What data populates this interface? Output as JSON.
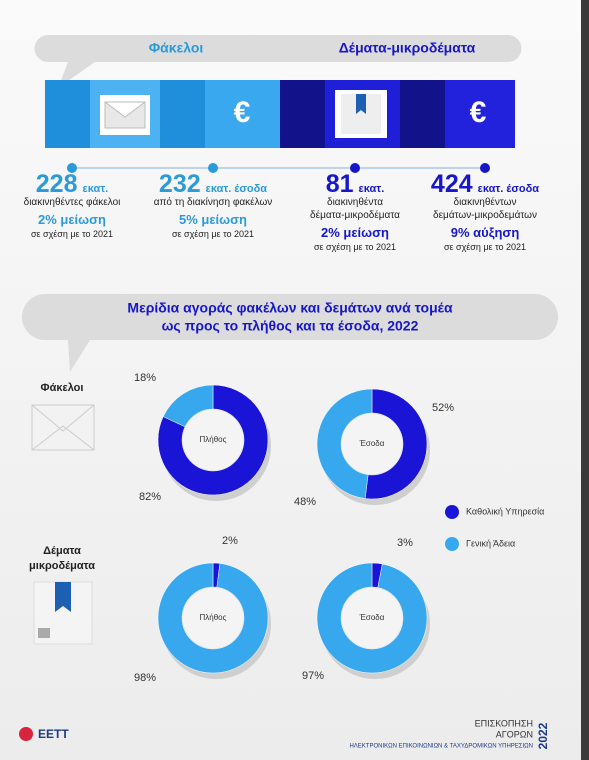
{
  "header": {
    "left": "Φάκελοι",
    "right": "Δέματα-μικροδέματα"
  },
  "stats": [
    {
      "number": "228",
      "unit": "εκατ.",
      "desc": [
        "διακινηθέντες φάκελοι"
      ],
      "change": "2% μείωση",
      "note": "σε σχέση με το 2021",
      "color": "#2a9ad8"
    },
    {
      "number": "232",
      "unit": "εκατ. έσοδα",
      "desc": [
        "από τη διακίνηση φακέλων"
      ],
      "change": "5% μείωση",
      "note": "σε σχέση με το 2021",
      "color": "#2a9ad8"
    },
    {
      "number": "81",
      "unit": "εκατ.",
      "desc": [
        "διακινηθέντα",
        "δέματα-μικροδέματα"
      ],
      "change": "2% μείωση",
      "note": "σε σχέση με το 2021",
      "color": "#1717c9"
    },
    {
      "number": "424",
      "unit": "εκατ. έσοδα",
      "desc": [
        "διακινηθέντων",
        "δεμάτων-μικροδεμάτων"
      ],
      "change": "9% αύξηση",
      "note": "σε σχέση με το 2021",
      "color": "#1717c9"
    }
  ],
  "section_title": [
    "Μερίδια αγοράς φακέλων και δεμάτων ανά τομέα",
    "ως προς το πλήθος και τα έσοδα, 2022"
  ],
  "row_labels": [
    [
      "Φάκελοι"
    ],
    [
      "Δέματα",
      "μικροδέματα"
    ]
  ],
  "legend": [
    {
      "name": "Καθολική Υπηρεσία",
      "color": "#1a14d6"
    },
    {
      "name": "Γενική Άδεια",
      "color": "#38a8ee"
    }
  ],
  "chart_data": [
    {
      "type": "donut",
      "center_label": "Πλήθος",
      "values": [
        82,
        18
      ],
      "value_labels": [
        "82%",
        "18%"
      ]
    },
    {
      "type": "donut",
      "center_label": "Έσοδα",
      "values": [
        52,
        48
      ],
      "value_labels": [
        "52%",
        "48%"
      ]
    },
    {
      "type": "donut",
      "center_label": "Πλήθος",
      "values": [
        2,
        98
      ],
      "value_labels": [
        "2%",
        "98%"
      ]
    },
    {
      "type": "donut",
      "center_label": "Έσοδα",
      "values": [
        3,
        97
      ],
      "value_labels": [
        "3%",
        "97%"
      ]
    }
  ],
  "footer": {
    "logo": "ΕΕΤΤ",
    "title": [
      "ΕΠΙΣΚΟΠΗΣΗ",
      "ΑΓΟΡΩΝ"
    ],
    "year": "2022",
    "subtitle": "ΗΛΕΚΤΡΟΝΙΚΩΝ ΕΠΙΚΟΙΝΩΝΙΩΝ & ΤΑΧΥΔΡΟΜΙΚΩΝ ΥΠΗΡΕΣΙΩΝ"
  }
}
